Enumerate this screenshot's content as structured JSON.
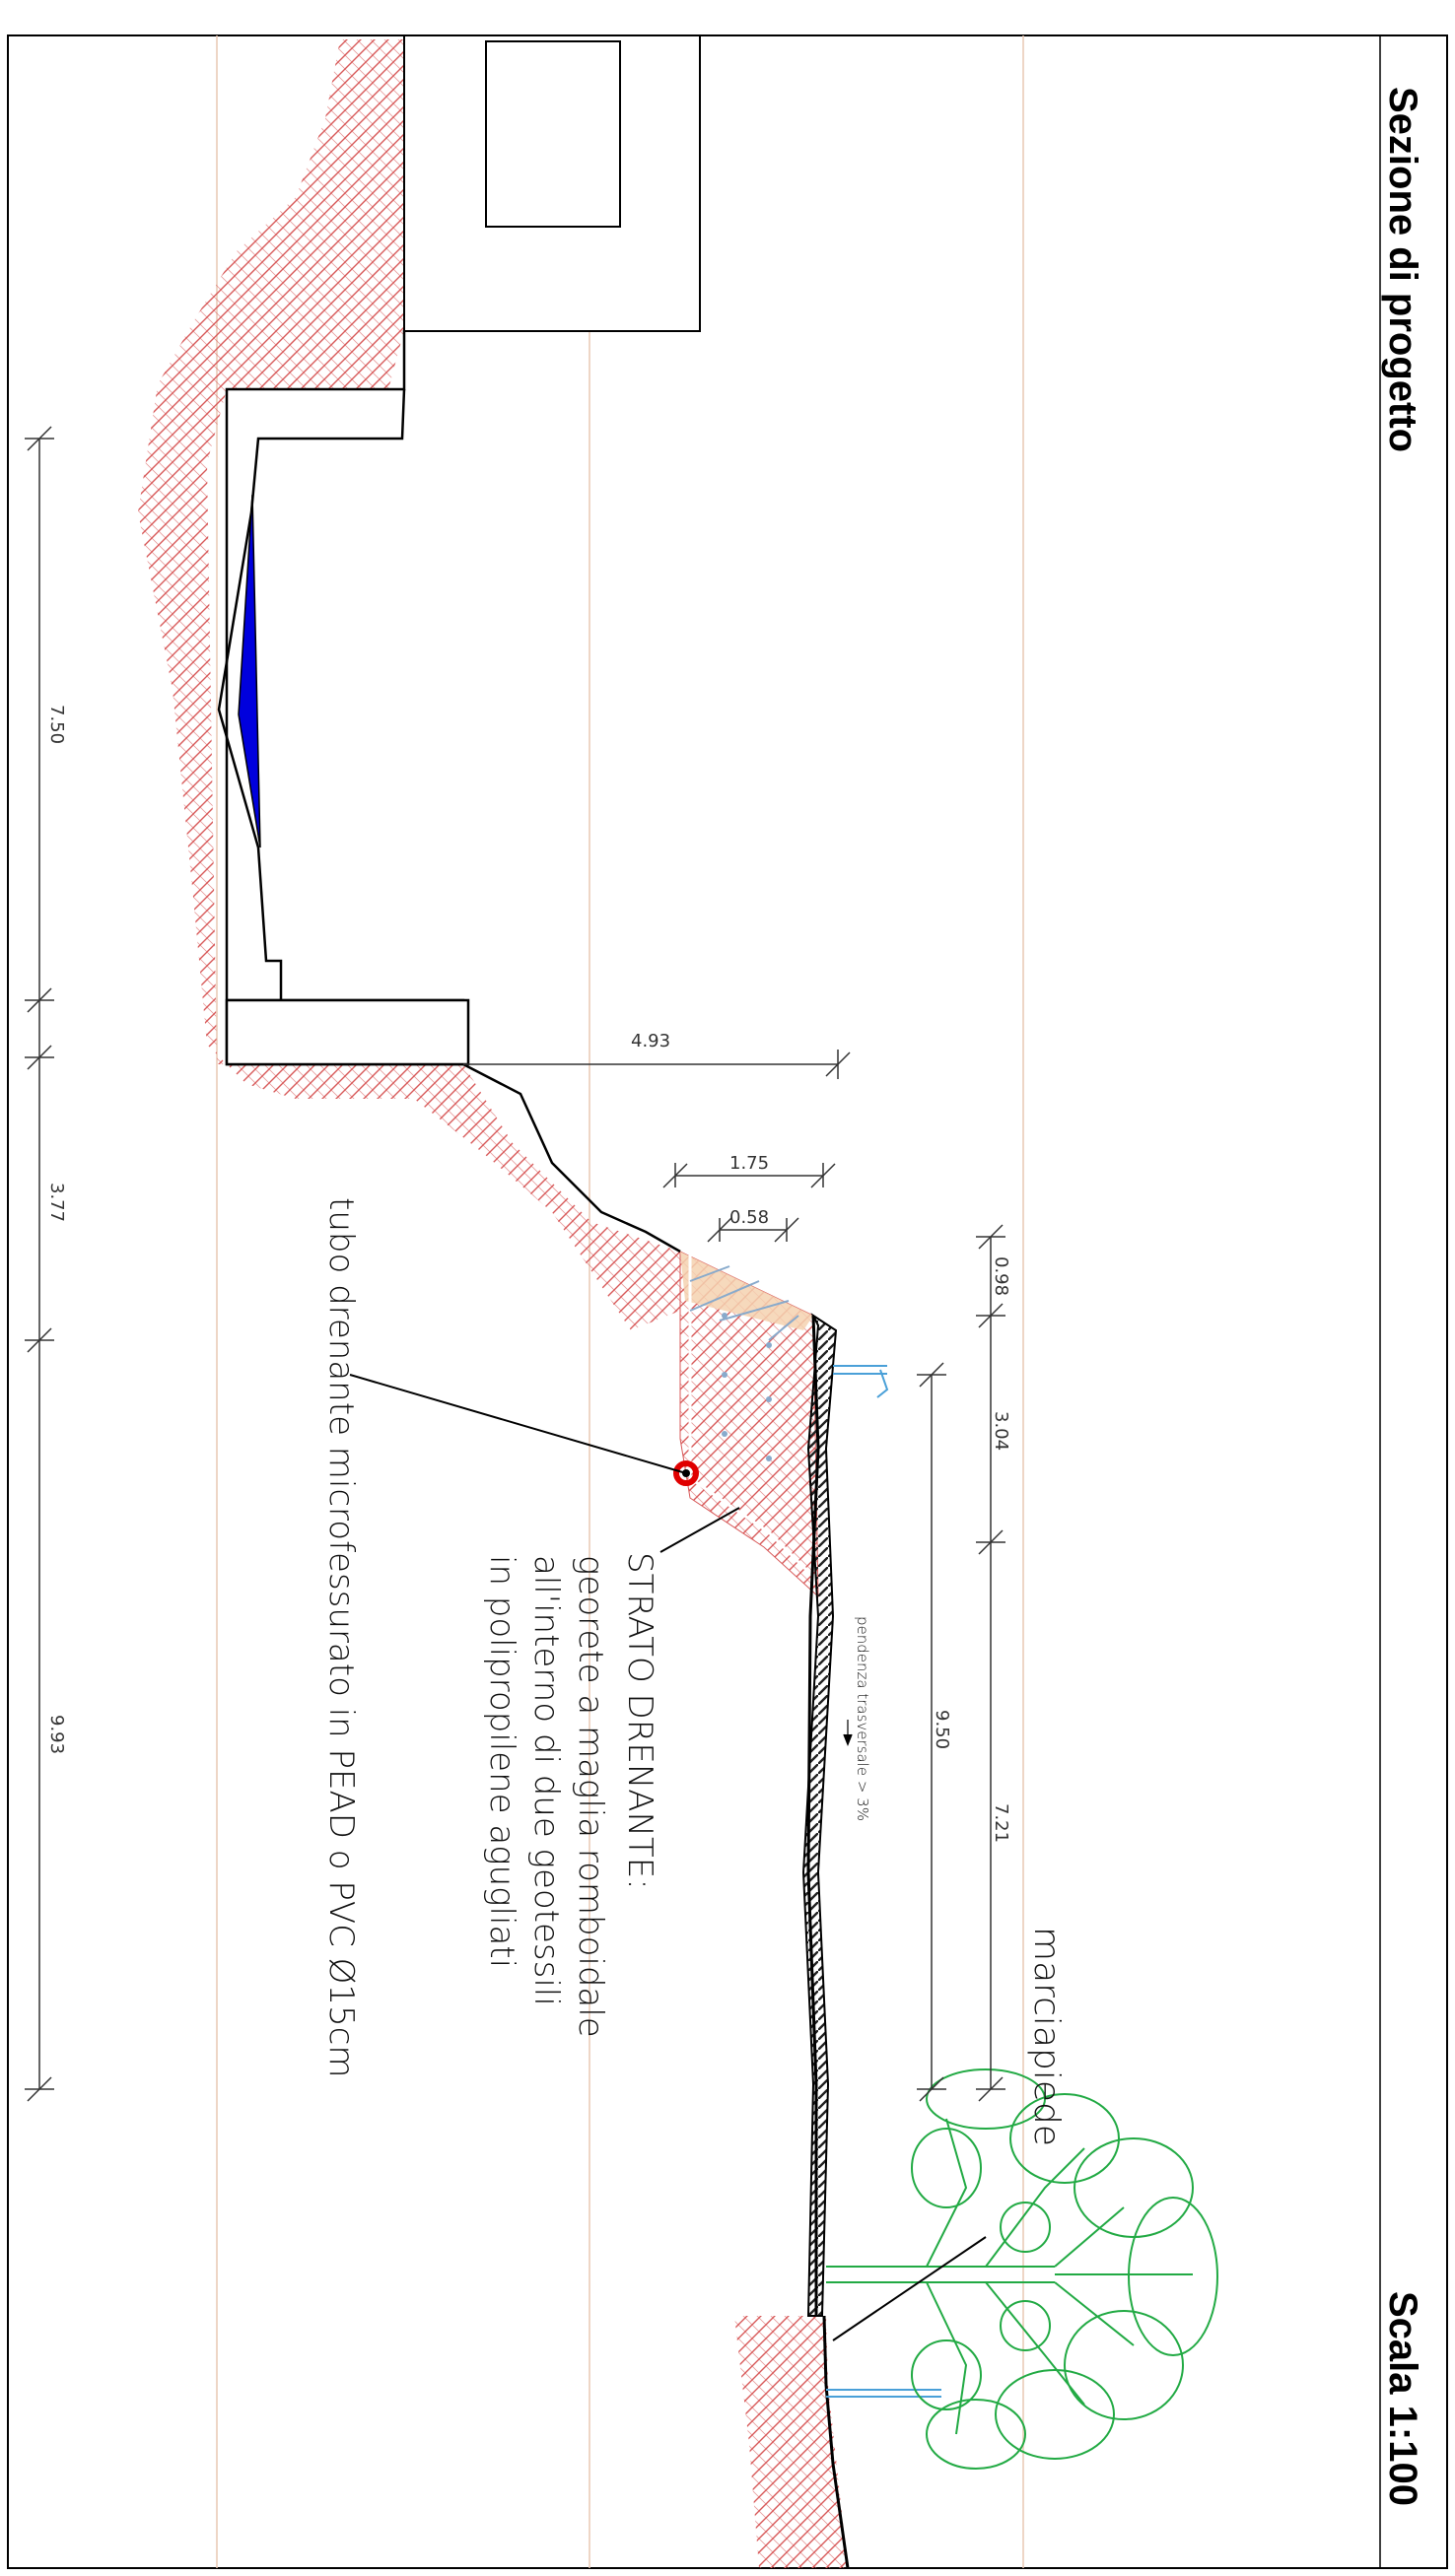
{
  "title": "Sezione di progetto",
  "scale": "Scala 1:100",
  "colors": {
    "hatch": "#d85a5a",
    "water": "#0000dd",
    "drain_pipe": "#e00000",
    "tree": "#22aa44",
    "sand": "#f4d2b0",
    "guide_lines": "#e9c8b4",
    "railing": "#4aa0d8"
  },
  "dimensions": {
    "left": [
      "7.50",
      "3.77",
      "9.93"
    ],
    "wall": "4.93",
    "drain_outer": "1.75",
    "drain_inner": "0.58",
    "slope_small": "0.98",
    "slope_mid": "3.04",
    "slope_long": "7.21",
    "road": "9.50"
  },
  "annotations": {
    "slope": "pendenza trasversale > 3%",
    "drain_layer": [
      "STRATO DRENANTE:",
      "georete a maglia romboidale",
      "all'interno di due geotessili",
      "in polipropilene agugliati"
    ],
    "pipe": "tubo drenante microfessurato in PEAD o PVC Ø15cm",
    "sidewalk": "marciapiede"
  }
}
